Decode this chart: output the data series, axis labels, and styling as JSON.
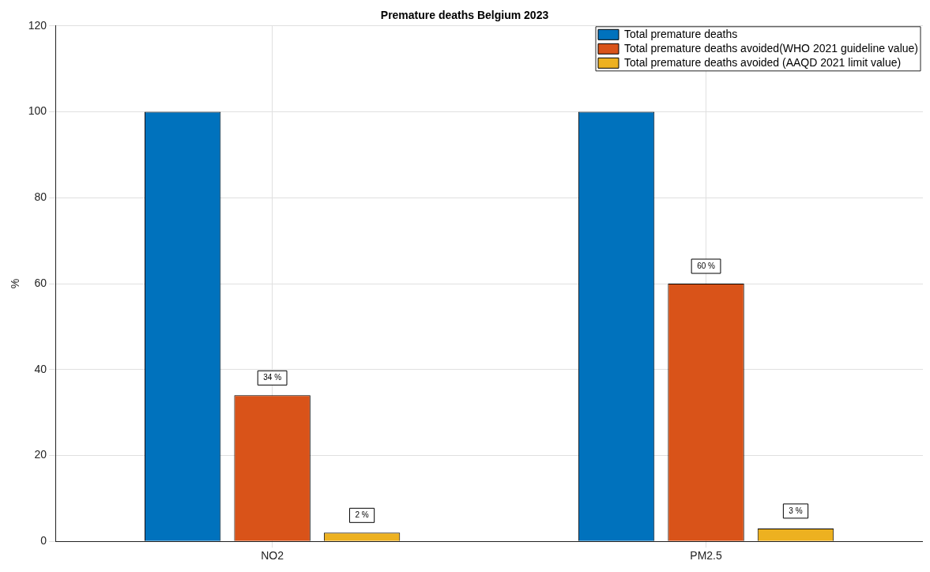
{
  "chart_data": {
    "type": "bar",
    "title": "Premature deaths Belgium 2023",
    "ylabel": "%",
    "categories": [
      "NO2",
      "PM2.5"
    ],
    "series": [
      {
        "name": "Total premature deaths",
        "color": "#0072bd",
        "values": [
          100,
          100
        ]
      },
      {
        "name": "Total premature deaths avoided(WHO 2021 guideline value)",
        "color": "#d95319",
        "values": [
          34,
          60
        ],
        "value_labels": [
          "34 %",
          "60 %"
        ]
      },
      {
        "name": "Total premature deaths avoided (AAQD 2021 limit value)",
        "color": "#edb120",
        "values": [
          2,
          3
        ],
        "value_labels": [
          "2 %",
          "3 %"
        ]
      }
    ],
    "ylim": [
      0,
      120
    ],
    "yticks": [
      0,
      20,
      40,
      60,
      80,
      100,
      120
    ],
    "grid": true,
    "legend": "top right"
  }
}
